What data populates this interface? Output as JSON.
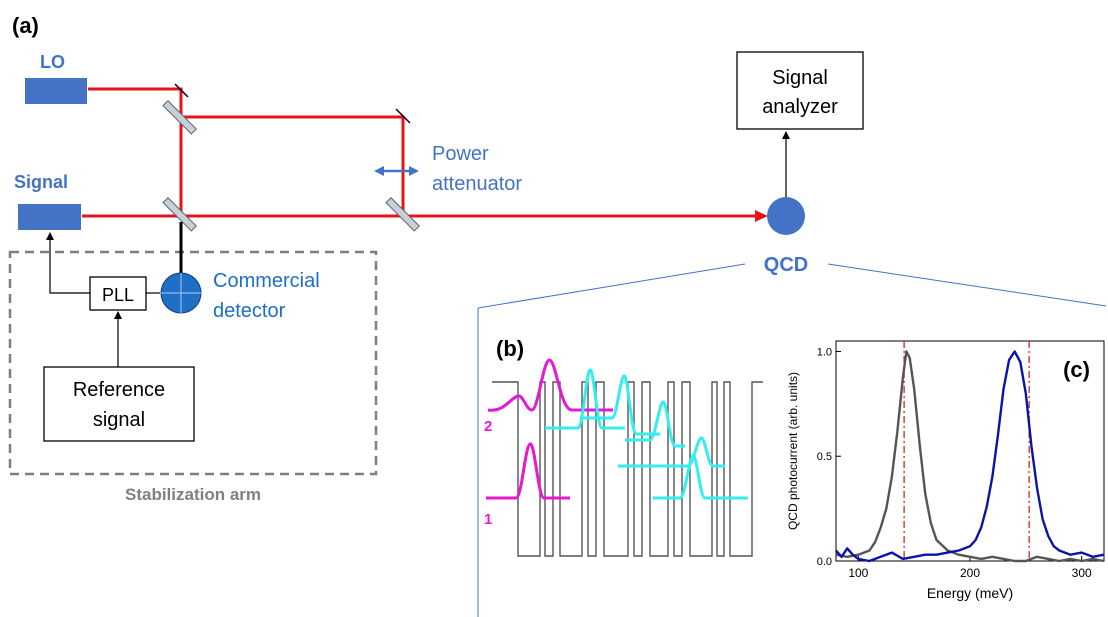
{
  "panel_labels": {
    "a": "(a)",
    "b": "(b)",
    "c": "(c)"
  },
  "sources": {
    "lo": "LO",
    "signal": "Signal"
  },
  "boxes": {
    "signal_analyzer": [
      "Signal",
      "analyzer"
    ],
    "pll": "PLL",
    "reference_signal": [
      "Reference",
      "signal"
    ]
  },
  "labels": {
    "power_attenuator": [
      "Power",
      "attenuator"
    ],
    "qcd": "QCD",
    "commercial_detector": [
      "Commercial",
      "detector"
    ],
    "stabilization_arm": "Stabilization arm"
  },
  "band_labels": {
    "state_1": "1",
    "state_2": "2"
  },
  "colors": {
    "beam": "#e5141b",
    "source": "#4472c4",
    "text_blue": "#4472c4",
    "detector": "#1f6fc5",
    "magenta": "#e619d3",
    "cyan": "#33eeee",
    "gray_curve": "#555555",
    "blue_curve": "#0a14a8",
    "marker": "#cc2a1e"
  },
  "chart_data": {
    "type": "line",
    "xlabel": "Energy (meV)",
    "ylabel": "QCD photocurrent (arb. units)",
    "xlim": [
      80,
      320
    ],
    "ylim": [
      0,
      1.05
    ],
    "xticks": [
      100,
      200,
      300
    ],
    "yticks": [
      0.0,
      0.5,
      1.0
    ],
    "ytick_labels": [
      "0.0",
      "0.5",
      "1.0"
    ],
    "vlines": [
      141,
      253
    ],
    "series": [
      {
        "color": "gray",
        "x": [
          80,
          90,
          100,
          110,
          115,
          120,
          125,
          130,
          135,
          140,
          143,
          146,
          150,
          155,
          160,
          165,
          170,
          180,
          190,
          200,
          210,
          220,
          230,
          240,
          250,
          260,
          270,
          280,
          290,
          300,
          310,
          320
        ],
        "y": [
          0.03,
          0.02,
          0.03,
          0.05,
          0.09,
          0.16,
          0.25,
          0.4,
          0.62,
          0.88,
          1.0,
          0.97,
          0.82,
          0.55,
          0.32,
          0.18,
          0.1,
          0.05,
          0.03,
          0.02,
          0.01,
          0.02,
          0.01,
          0.0,
          0.0,
          0.02,
          0.01,
          0.0,
          0.01,
          0.0,
          0.01,
          0.0
        ]
      },
      {
        "color": "blue",
        "x": [
          80,
          85,
          90,
          95,
          100,
          110,
          120,
          130,
          140,
          150,
          160,
          170,
          180,
          190,
          200,
          205,
          210,
          215,
          220,
          225,
          230,
          235,
          240,
          245,
          250,
          255,
          260,
          265,
          270,
          275,
          280,
          290,
          300,
          310,
          320
        ],
        "y": [
          0.05,
          0.02,
          0.06,
          0.03,
          0.01,
          0.0,
          0.02,
          0.04,
          0.01,
          0.02,
          0.03,
          0.03,
          0.04,
          0.05,
          0.07,
          0.1,
          0.16,
          0.26,
          0.4,
          0.6,
          0.82,
          0.96,
          1.0,
          0.95,
          0.8,
          0.55,
          0.35,
          0.2,
          0.12,
          0.07,
          0.05,
          0.03,
          0.04,
          0.02,
          0.03
        ]
      }
    ]
  }
}
